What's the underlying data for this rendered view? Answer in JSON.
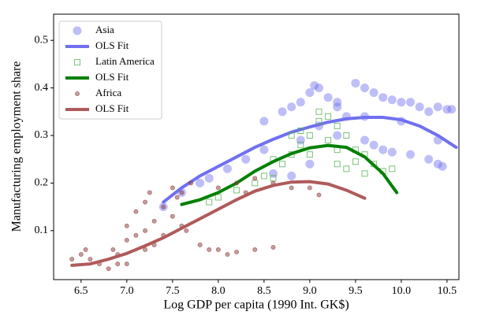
{
  "chart_data": {
    "type": "scatter",
    "xlabel": "Log GDP per capita (1990 Int. GK$)",
    "ylabel": "Manufacturing employment share",
    "xlim": [
      6.2,
      10.63
    ],
    "ylim": [
      -0.003,
      0.555
    ],
    "xticks": [
      6.5,
      {
        "value": 7,
        "label": "7.0"
      },
      7.5,
      {
        "value": 8,
        "label": "8.0"
      },
      8.5,
      {
        "value": 9,
        "label": "9.0"
      },
      9.5,
      {
        "value": 10,
        "label": "10.0"
      },
      10.5
    ],
    "yticks": [
      0.1,
      0.2,
      0.3,
      0.4,
      0.5
    ],
    "legend": "upper left",
    "series": [
      {
        "name": "Asia",
        "marker": "circle",
        "color": "#6f6ff0",
        "x": [
          7.4,
          7.6,
          7.8,
          7.9,
          8.1,
          8.3,
          8.5,
          8.5,
          8.7,
          8.8,
          8.9,
          9.0,
          9.05,
          9.1,
          9.2,
          9.3,
          9.4,
          9.5,
          9.6,
          9.7,
          9.8,
          9.9,
          10.0,
          10.1,
          10.2,
          10.3,
          10.4,
          10.5,
          10.55,
          9.6,
          9.7,
          9.8,
          9.9,
          10.1,
          10.3,
          10.4,
          10.45,
          9.3,
          9.1,
          8.9,
          8.6,
          8.8,
          9.0,
          9.3,
          9.6,
          10.0,
          10.4
        ],
        "values": [
          0.15,
          0.18,
          0.2,
          0.21,
          0.23,
          0.25,
          0.27,
          0.33,
          0.35,
          0.36,
          0.37,
          0.39,
          0.405,
          0.4,
          0.38,
          0.36,
          0.34,
          0.41,
          0.4,
          0.39,
          0.38,
          0.375,
          0.37,
          0.37,
          0.36,
          0.35,
          0.36,
          0.355,
          0.355,
          0.29,
          0.28,
          0.27,
          0.265,
          0.26,
          0.25,
          0.24,
          0.235,
          0.3,
          0.32,
          0.29,
          0.22,
          0.215,
          0.24,
          0.37,
          0.34,
          0.33,
          0.29
        ]
      },
      {
        "name": "OLS Fit",
        "marker": "line",
        "color": "#7070f0",
        "x": [
          7.4,
          7.6,
          7.8,
          8.0,
          8.2,
          8.4,
          8.6,
          8.8,
          9.0,
          9.2,
          9.4,
          9.6,
          9.8,
          10.0,
          10.2,
          10.4,
          10.6
        ],
        "values": [
          0.16,
          0.19,
          0.215,
          0.235,
          0.255,
          0.275,
          0.292,
          0.307,
          0.318,
          0.328,
          0.335,
          0.338,
          0.338,
          0.333,
          0.32,
          0.3,
          0.275
        ]
      },
      {
        "name": "Latin America",
        "marker": "square",
        "color": "#4caf4c",
        "x": [
          7.9,
          8.0,
          8.2,
          8.4,
          8.6,
          8.7,
          8.8,
          8.9,
          8.9,
          9.0,
          9.1,
          9.1,
          9.2,
          9.3,
          9.4,
          9.5,
          9.5,
          9.6,
          9.7,
          9.8,
          9.9,
          9.4,
          9.3,
          9.6,
          8.8,
          9.0,
          9.2,
          9.3,
          8.5,
          8.6
        ],
        "values": [
          0.16,
          0.17,
          0.185,
          0.2,
          0.21,
          0.24,
          0.26,
          0.28,
          0.31,
          0.3,
          0.33,
          0.35,
          0.34,
          0.32,
          0.3,
          0.27,
          0.245,
          0.26,
          0.24,
          0.225,
          0.23,
          0.23,
          0.24,
          0.22,
          0.3,
          0.26,
          0.29,
          0.27,
          0.215,
          0.25
        ]
      },
      {
        "name": "OLS Fit",
        "marker": "line",
        "color": "#008000",
        "x": [
          7.6,
          7.8,
          8.0,
          8.2,
          8.4,
          8.6,
          8.8,
          9.0,
          9.2,
          9.4,
          9.6,
          9.8,
          9.95
        ],
        "values": [
          0.155,
          0.165,
          0.18,
          0.2,
          0.225,
          0.245,
          0.262,
          0.274,
          0.279,
          0.275,
          0.255,
          0.22,
          0.18
        ]
      },
      {
        "name": "Africa",
        "marker": "dot",
        "color": "#8b3a3a",
        "x": [
          6.4,
          6.5,
          6.55,
          6.6,
          6.7,
          6.8,
          6.85,
          6.9,
          7.0,
          7.0,
          7.1,
          7.1,
          7.2,
          7.2,
          7.25,
          7.3,
          7.3,
          7.4,
          7.4,
          7.5,
          7.5,
          7.55,
          7.6,
          7.6,
          7.65,
          7.7,
          7.8,
          7.9,
          8.0,
          8.1,
          8.2,
          8.4,
          8.6,
          8.0,
          8.2,
          8.4,
          8.6,
          8.8,
          9.0,
          9.1,
          8.3,
          7.0,
          6.9,
          7.2
        ],
        "values": [
          0.04,
          0.05,
          0.06,
          0.04,
          0.03,
          0.02,
          0.06,
          0.03,
          0.08,
          0.11,
          0.09,
          0.14,
          0.1,
          0.16,
          0.18,
          0.12,
          0.07,
          0.09,
          0.15,
          0.13,
          0.19,
          0.17,
          0.18,
          0.11,
          0.1,
          0.2,
          0.07,
          0.06,
          0.06,
          0.05,
          0.055,
          0.06,
          0.065,
          0.19,
          0.2,
          0.21,
          0.2,
          0.19,
          0.19,
          0.175,
          0.18,
          0.03,
          0.05,
          0.06
        ]
      },
      {
        "name": "OLS Fit",
        "marker": "line",
        "color": "#b05a5a",
        "x": [
          6.4,
          6.6,
          6.8,
          7.0,
          7.2,
          7.4,
          7.6,
          7.8,
          8.0,
          8.2,
          8.4,
          8.6,
          8.8,
          9.0,
          9.2,
          9.4,
          9.6
        ],
        "values": [
          0.027,
          0.03,
          0.04,
          0.052,
          0.068,
          0.085,
          0.105,
          0.125,
          0.145,
          0.165,
          0.183,
          0.195,
          0.202,
          0.203,
          0.198,
          0.185,
          0.168
        ]
      }
    ]
  }
}
